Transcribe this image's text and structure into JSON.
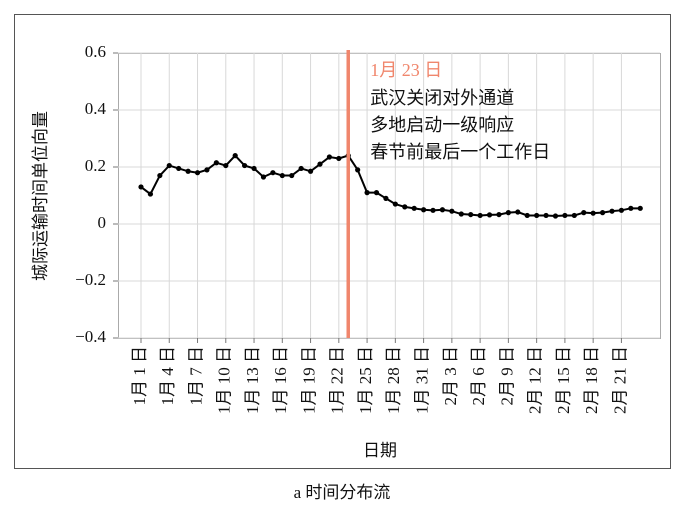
{
  "chart_data": {
    "type": "line",
    "xlabel": "日期",
    "ylabel": "城际运输时间单位向量",
    "caption": "a 时间分布流",
    "categories": [
      "1月 1 日",
      null,
      null,
      "1月 4 日",
      null,
      null,
      "1月 7 日",
      null,
      null,
      "1月 10 日",
      null,
      null,
      "1月 13 日",
      null,
      null,
      "1月 16 日",
      null,
      null,
      "1月 19 日",
      null,
      null,
      "1月 22 日",
      null,
      null,
      "1月 25 日",
      null,
      null,
      "1月 28 日",
      null,
      null,
      "1月 31 日",
      null,
      null,
      "2月 3 日",
      null,
      null,
      "2月 6 日",
      null,
      null,
      "2月 9 日",
      null,
      null,
      "2月 12 日",
      null,
      null,
      "2月 15 日",
      null,
      null,
      "2月 18 日",
      null,
      null,
      "2月 21 日",
      null,
      null
    ],
    "series": [
      {
        "name": "城际运输时间单位向量",
        "color": "#000000",
        "values": [
          0.13,
          0.105,
          0.17,
          0.205,
          0.195,
          0.185,
          0.18,
          0.19,
          0.215,
          0.205,
          0.24,
          0.205,
          0.195,
          0.165,
          0.18,
          0.17,
          0.17,
          0.195,
          0.185,
          0.21,
          0.235,
          0.23,
          0.24,
          0.19,
          0.11,
          0.11,
          0.09,
          0.07,
          0.06,
          0.055,
          0.05,
          0.048,
          0.05,
          0.045,
          0.035,
          0.033,
          0.03,
          0.032,
          0.033,
          0.04,
          0.042,
          0.03,
          0.03,
          0.03,
          0.028,
          0.03,
          0.03,
          0.04,
          0.038,
          0.04,
          0.045,
          0.048,
          0.055,
          0.055
        ]
      }
    ],
    "ylim": [
      -0.4,
      0.6
    ],
    "yticks": [
      {
        "value": -0.4,
        "label": "−0.4"
      },
      {
        "value": -0.2,
        "label": "−0.2"
      },
      0,
      0.2,
      0.4,
      0.6
    ],
    "grid": true,
    "annotation": {
      "x": 22,
      "color": "#f0866c",
      "title": "1月 23 日",
      "lines": [
        "武汉关闭对外通道",
        "多地启动一级响应",
        "春节前最后一个工作日"
      ]
    }
  }
}
